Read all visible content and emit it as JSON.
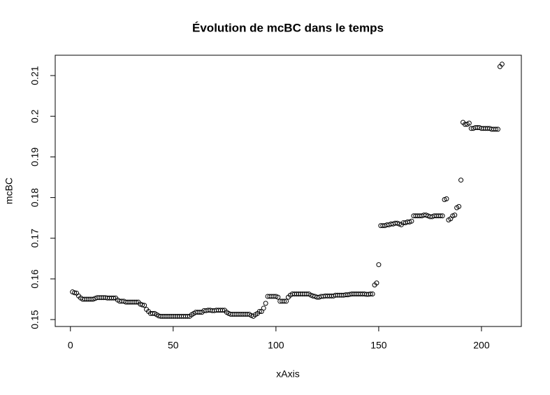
{
  "chart_data": {
    "type": "scatter",
    "title": "Évolution de mcBC dans le temps",
    "x_label": "xAxis",
    "y_label": "mcBC",
    "xlim": [
      -7.4,
      219.4
    ],
    "ylim": [
      0.1483,
      0.215
    ],
    "xticks": [
      0,
      50,
      100,
      150,
      200
    ],
    "yticks": [
      0.15,
      0.16,
      0.17,
      0.18,
      0.19,
      0.2,
      0.21
    ],
    "color": "#000000",
    "x": [
      1,
      2,
      3,
      4,
      5,
      6,
      7,
      8,
      9,
      10,
      11,
      12,
      13,
      14,
      15,
      16,
      17,
      18,
      19,
      20,
      21,
      22,
      23,
      24,
      25,
      26,
      27,
      28,
      29,
      30,
      31,
      32,
      33,
      34,
      35,
      36,
      37,
      38,
      39,
      40,
      41,
      42,
      43,
      44,
      45,
      46,
      47,
      48,
      49,
      50,
      51,
      52,
      53,
      54,
      55,
      56,
      57,
      58,
      59,
      60,
      61,
      62,
      63,
      64,
      65,
      66,
      67,
      68,
      69,
      70,
      71,
      72,
      73,
      74,
      75,
      76,
      77,
      78,
      79,
      80,
      81,
      82,
      83,
      84,
      85,
      86,
      87,
      88,
      89,
      90,
      91,
      92,
      93,
      94,
      95,
      96,
      97,
      98,
      99,
      100,
      101,
      102,
      103,
      104,
      105,
      106,
      107,
      108,
      109,
      110,
      111,
      112,
      113,
      114,
      115,
      116,
      117,
      118,
      119,
      120,
      121,
      122,
      123,
      124,
      125,
      126,
      127,
      128,
      129,
      130,
      131,
      132,
      133,
      134,
      135,
      136,
      137,
      138,
      139,
      140,
      141,
      142,
      143,
      144,
      145,
      146,
      147,
      148,
      149,
      150,
      151,
      152,
      153,
      154,
      155,
      156,
      157,
      158,
      159,
      160,
      161,
      162,
      163,
      164,
      165,
      166,
      167,
      168,
      169,
      170,
      171,
      172,
      173,
      174,
      175,
      176,
      177,
      178,
      179,
      180,
      181,
      182,
      183,
      184,
      185,
      186,
      187,
      188,
      189,
      190,
      191,
      192,
      193,
      194,
      195,
      196,
      197,
      198,
      199,
      200,
      201,
      202,
      203,
      204,
      205,
      206,
      207,
      208,
      209,
      210
    ],
    "values": [
      0.1568,
      0.1566,
      0.1565,
      0.1558,
      0.1553,
      0.155,
      0.155,
      0.155,
      0.155,
      0.155,
      0.155,
      0.1552,
      0.1554,
      0.1554,
      0.1554,
      0.1554,
      0.1554,
      0.1553,
      0.1553,
      0.1553,
      0.1553,
      0.1553,
      0.1548,
      0.1545,
      0.1545,
      0.1545,
      0.1543,
      0.1543,
      0.1543,
      0.1543,
      0.1543,
      0.1543,
      0.1543,
      0.1538,
      0.1536,
      0.1535,
      0.1525,
      0.152,
      0.1515,
      0.1515,
      0.1515,
      0.1512,
      0.1509,
      0.1508,
      0.1508,
      0.1508,
      0.1508,
      0.1508,
      0.1508,
      0.1508,
      0.1508,
      0.1508,
      0.1508,
      0.1508,
      0.1508,
      0.1508,
      0.1508,
      0.1508,
      0.1512,
      0.1515,
      0.1518,
      0.1518,
      0.1518,
      0.1518,
      0.1522,
      0.1522,
      0.1523,
      0.1523,
      0.1522,
      0.1522,
      0.1523,
      0.1523,
      0.1523,
      0.1523,
      0.1523,
      0.1518,
      0.1515,
      0.1513,
      0.1513,
      0.1513,
      0.1513,
      0.1513,
      0.1513,
      0.1513,
      0.1513,
      0.1513,
      0.1513,
      0.151,
      0.1508,
      0.1512,
      0.1515,
      0.152,
      0.152,
      0.1528,
      0.154,
      0.1557,
      0.1557,
      0.1557,
      0.1557,
      0.1557,
      0.1555,
      0.1545,
      0.1545,
      0.1545,
      0.1545,
      0.1555,
      0.156,
      0.1563,
      0.1563,
      0.1563,
      0.1563,
      0.1563,
      0.1563,
      0.1563,
      0.1563,
      0.1563,
      0.156,
      0.1558,
      0.1557,
      0.1555,
      0.1555,
      0.1557,
      0.1557,
      0.1558,
      0.1558,
      0.1558,
      0.1558,
      0.1558,
      0.156,
      0.156,
      0.156,
      0.156,
      0.156,
      0.1561,
      0.1561,
      0.1562,
      0.1563,
      0.1563,
      0.1563,
      0.1563,
      0.1563,
      0.1563,
      0.1563,
      0.1562,
      0.1562,
      0.1563,
      0.1563,
      0.1585,
      0.159,
      0.1635,
      0.1731,
      0.1731,
      0.1731,
      0.1733,
      0.1733,
      0.1735,
      0.1735,
      0.1737,
      0.1737,
      0.1735,
      0.1733,
      0.1738,
      0.1738,
      0.174,
      0.174,
      0.1742,
      0.1755,
      0.1755,
      0.1755,
      0.1755,
      0.1755,
      0.1757,
      0.1757,
      0.1755,
      0.1753,
      0.1753,
      0.1755,
      0.1755,
      0.1755,
      0.1755,
      0.1755,
      0.1795,
      0.1797,
      0.1745,
      0.1748,
      0.1755,
      0.1757,
      0.1775,
      0.1778,
      0.1843,
      0.1985,
      0.198,
      0.198,
      0.1983,
      0.197,
      0.197,
      0.1972,
      0.1972,
      0.1972,
      0.197,
      0.197,
      0.197,
      0.197,
      0.197,
      0.1968,
      0.1968,
      0.1968,
      0.1968,
      0.2122,
      0.2128
    ]
  }
}
